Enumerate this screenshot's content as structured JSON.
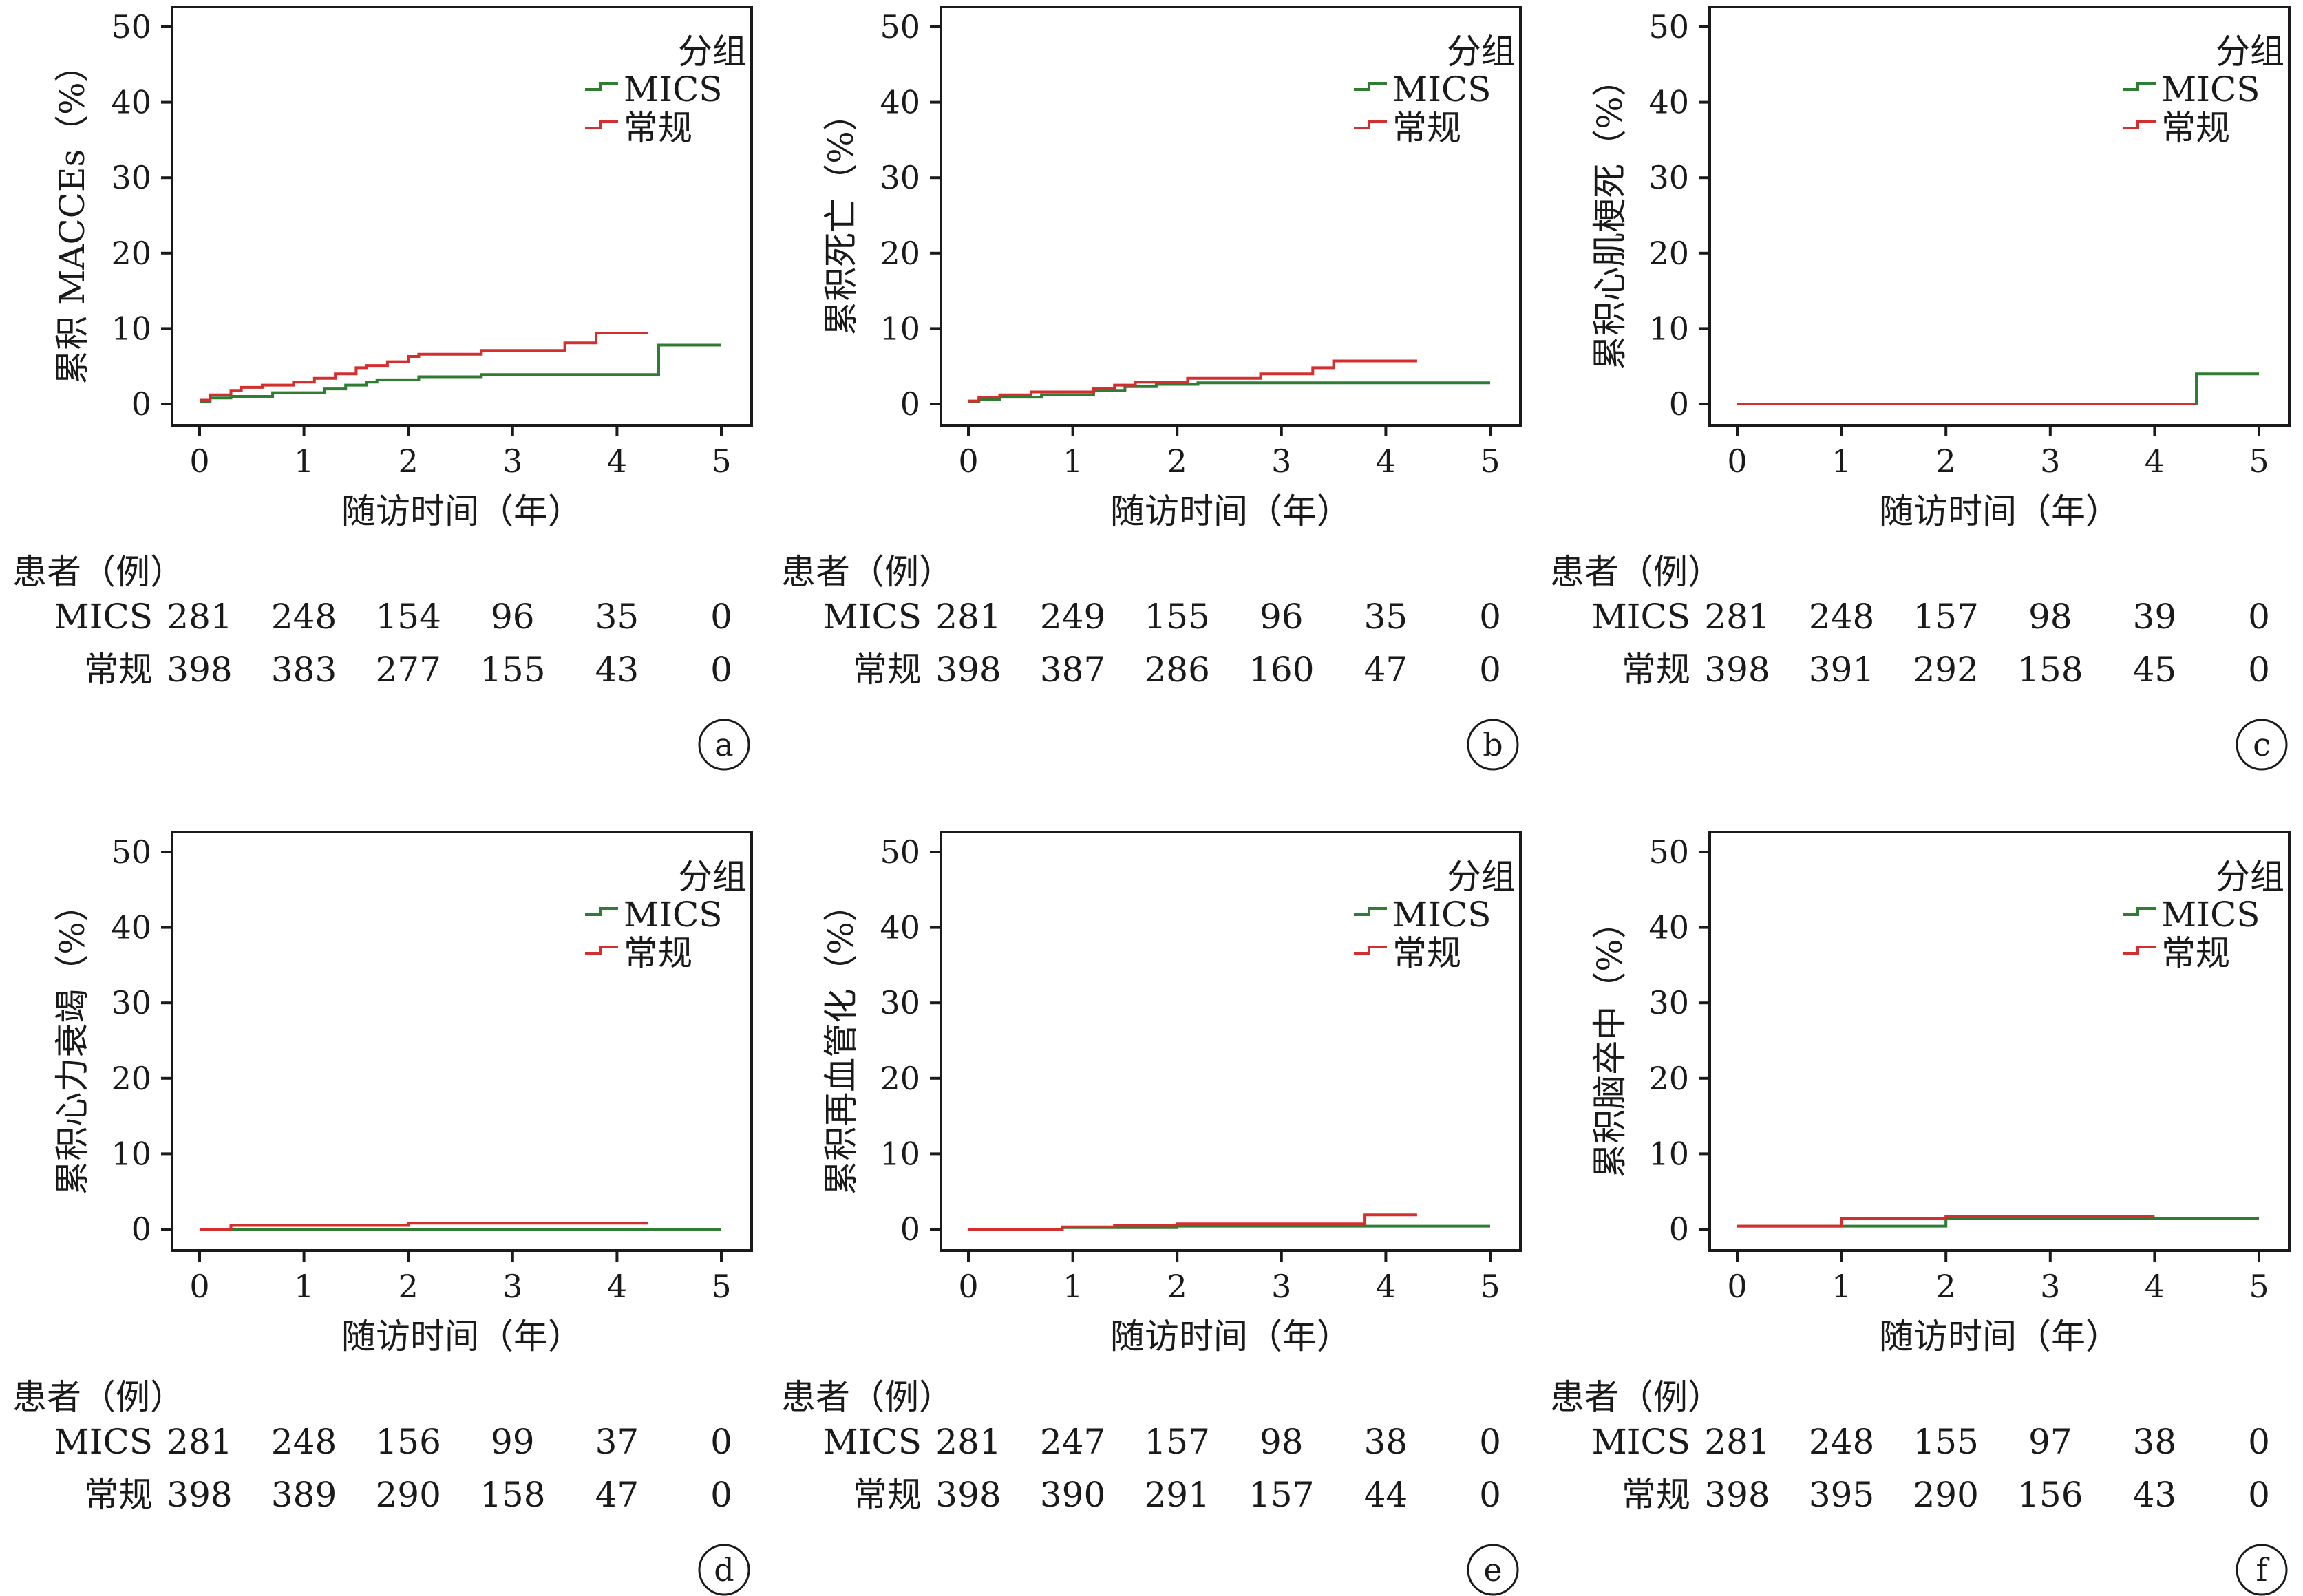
{
  "chart_data": [
    {
      "type": "line",
      "panel_label": "a",
      "ylabel": "累积 MACCEs（%）",
      "xlabel": "随访时间（年）",
      "xlim": [
        0,
        5
      ],
      "ylim": [
        0,
        50
      ],
      "x_ticks": [
        "0",
        "1",
        "2",
        "3",
        "4",
        "5"
      ],
      "y_ticks": [
        "0",
        "10",
        "20",
        "30",
        "40",
        "50"
      ],
      "legend_title": "分组",
      "series": [
        {
          "name": "MICS",
          "color": "#2e7d32",
          "x": [
            0,
            0.1,
            0.3,
            0.7,
            1.2,
            1.4,
            1.6,
            1.7,
            2.1,
            2.7,
            3.2,
            4.2,
            4.4,
            5.0
          ],
          "y": [
            0.3,
            0.8,
            1.0,
            1.5,
            2.0,
            2.5,
            2.9,
            3.2,
            3.6,
            3.9,
            3.9,
            3.9,
            7.8,
            7.8
          ]
        },
        {
          "name": "常规",
          "color": "#d32f2f",
          "x": [
            0,
            0.1,
            0.3,
            0.4,
            0.6,
            0.9,
            1.1,
            1.3,
            1.5,
            1.6,
            1.8,
            2.0,
            2.1,
            2.7,
            3.5,
            3.8,
            4.3
          ],
          "y": [
            0.5,
            1.2,
            1.8,
            2.2,
            2.5,
            2.9,
            3.4,
            4.0,
            4.8,
            5.1,
            5.6,
            6.3,
            6.6,
            7.1,
            8.1,
            9.4,
            9.4
          ]
        }
      ],
      "risk_table": {
        "title": "患者（例）",
        "rows": [
          {
            "label": "MICS",
            "values": [
              "281",
              "248",
              "154",
              "96",
              "35",
              "0"
            ]
          },
          {
            "label": "常规",
            "values": [
              "398",
              "383",
              "277",
              "155",
              "43",
              "0"
            ]
          }
        ]
      }
    },
    {
      "type": "line",
      "panel_label": "b",
      "ylabel": "累积死亡（%）",
      "xlabel": "随访时间（年）",
      "xlim": [
        0,
        5
      ],
      "ylim": [
        0,
        50
      ],
      "x_ticks": [
        "0",
        "1",
        "2",
        "3",
        "4",
        "5"
      ],
      "y_ticks": [
        "0",
        "10",
        "20",
        "30",
        "40",
        "50"
      ],
      "legend_title": "分组",
      "series": [
        {
          "name": "MICS",
          "color": "#2e7d32",
          "x": [
            0,
            0.1,
            0.3,
            0.7,
            1.2,
            1.5,
            1.8,
            2.2,
            5.0
          ],
          "y": [
            0.3,
            0.6,
            0.9,
            1.2,
            1.8,
            2.3,
            2.6,
            2.8,
            2.8
          ]
        },
        {
          "name": "常规",
          "color": "#d32f2f",
          "x": [
            0,
            0.1,
            0.3,
            0.6,
            1.2,
            1.4,
            1.6,
            2.1,
            2.8,
            3.3,
            3.5,
            4.3
          ],
          "y": [
            0.4,
            0.9,
            1.2,
            1.6,
            2.1,
            2.5,
            2.9,
            3.4,
            4.0,
            4.8,
            5.7,
            5.7
          ]
        }
      ],
      "risk_table": {
        "title": "患者（例）",
        "rows": [
          {
            "label": "MICS",
            "values": [
              "281",
              "249",
              "155",
              "96",
              "35",
              "0"
            ]
          },
          {
            "label": "常规",
            "values": [
              "398",
              "387",
              "286",
              "160",
              "47",
              "0"
            ]
          }
        ]
      }
    },
    {
      "type": "line",
      "panel_label": "c",
      "ylabel": "累积心肌梗死（%）",
      "xlabel": "随访时间（年）",
      "xlim": [
        0,
        5
      ],
      "ylim": [
        0,
        50
      ],
      "x_ticks": [
        "0",
        "1",
        "2",
        "3",
        "4",
        "5"
      ],
      "y_ticks": [
        "0",
        "10",
        "20",
        "30",
        "40",
        "50"
      ],
      "legend_title": "分组",
      "series": [
        {
          "name": "MICS",
          "color": "#2e7d32",
          "x": [
            0,
            4.4,
            5.0
          ],
          "y": [
            0,
            4.0,
            4.0
          ]
        },
        {
          "name": "常规",
          "color": "#d32f2f",
          "x": [
            0,
            4.4
          ],
          "y": [
            0,
            0
          ]
        }
      ],
      "risk_table": {
        "title": "患者（例）",
        "rows": [
          {
            "label": "MICS",
            "values": [
              "281",
              "248",
              "157",
              "98",
              "39",
              "0"
            ]
          },
          {
            "label": "常规",
            "values": [
              "398",
              "391",
              "292",
              "158",
              "45",
              "0"
            ]
          }
        ]
      }
    },
    {
      "type": "line",
      "panel_label": "d",
      "ylabel": "累积心力衰竭（%）",
      "xlabel": "随访时间（年）",
      "xlim": [
        0,
        5
      ],
      "ylim": [
        0,
        50
      ],
      "x_ticks": [
        "0",
        "1",
        "2",
        "3",
        "4",
        "5"
      ],
      "y_ticks": [
        "0",
        "10",
        "20",
        "30",
        "40",
        "50"
      ],
      "legend_title": "分组",
      "series": [
        {
          "name": "MICS",
          "color": "#2e7d32",
          "x": [
            0,
            5.0
          ],
          "y": [
            0,
            0
          ]
        },
        {
          "name": "常规",
          "color": "#d32f2f",
          "x": [
            0,
            0.3,
            2.0,
            4.3
          ],
          "y": [
            0,
            0.5,
            0.8,
            0.8
          ]
        }
      ],
      "risk_table": {
        "title": "患者（例）",
        "rows": [
          {
            "label": "MICS",
            "values": [
              "281",
              "248",
              "156",
              "99",
              "37",
              "0"
            ]
          },
          {
            "label": "常规",
            "values": [
              "398",
              "389",
              "290",
              "158",
              "47",
              "0"
            ]
          }
        ]
      }
    },
    {
      "type": "line",
      "panel_label": "e",
      "ylabel": "累积再血管化（%）",
      "xlabel": "随访时间（年）",
      "xlim": [
        0,
        5
      ],
      "ylim": [
        0,
        50
      ],
      "x_ticks": [
        "0",
        "1",
        "2",
        "3",
        "4",
        "5"
      ],
      "y_ticks": [
        "0",
        "10",
        "20",
        "30",
        "40",
        "50"
      ],
      "legend_title": "分组",
      "series": [
        {
          "name": "MICS",
          "color": "#2e7d32",
          "x": [
            0,
            0.9,
            2.0,
            5.0
          ],
          "y": [
            0,
            0.2,
            0.4,
            0.4
          ]
        },
        {
          "name": "常规",
          "color": "#d32f2f",
          "x": [
            0,
            0.9,
            1.4,
            2.0,
            3.8,
            4.3
          ],
          "y": [
            0,
            0.3,
            0.5,
            0.7,
            1.9,
            1.9
          ]
        }
      ],
      "risk_table": {
        "title": "患者（例）",
        "rows": [
          {
            "label": "MICS",
            "values": [
              "281",
              "247",
              "157",
              "98",
              "38",
              "0"
            ]
          },
          {
            "label": "常规",
            "values": [
              "398",
              "390",
              "291",
              "157",
              "44",
              "0"
            ]
          }
        ]
      }
    },
    {
      "type": "line",
      "panel_label": "f",
      "ylabel": "累积脑卒中（%）",
      "xlabel": "随访时间（年）",
      "xlim": [
        0,
        5
      ],
      "ylim": [
        0,
        50
      ],
      "x_ticks": [
        "0",
        "1",
        "2",
        "3",
        "4",
        "5"
      ],
      "y_ticks": [
        "0",
        "10",
        "20",
        "30",
        "40",
        "50"
      ],
      "legend_title": "分组",
      "series": [
        {
          "name": "MICS",
          "color": "#2e7d32",
          "x": [
            0,
            2.0,
            5.0
          ],
          "y": [
            0.4,
            1.4,
            1.4
          ]
        },
        {
          "name": "常规",
          "color": "#d32f2f",
          "x": [
            0,
            1.0,
            2.0,
            4.0
          ],
          "y": [
            0.4,
            1.4,
            1.7,
            1.7
          ]
        }
      ],
      "risk_table": {
        "title": "患者（例）",
        "rows": [
          {
            "label": "MICS",
            "values": [
              "281",
              "248",
              "155",
              "97",
              "38",
              "0"
            ]
          },
          {
            "label": "常规",
            "values": [
              "398",
              "395",
              "290",
              "156",
              "43",
              "0"
            ]
          }
        ]
      }
    }
  ]
}
